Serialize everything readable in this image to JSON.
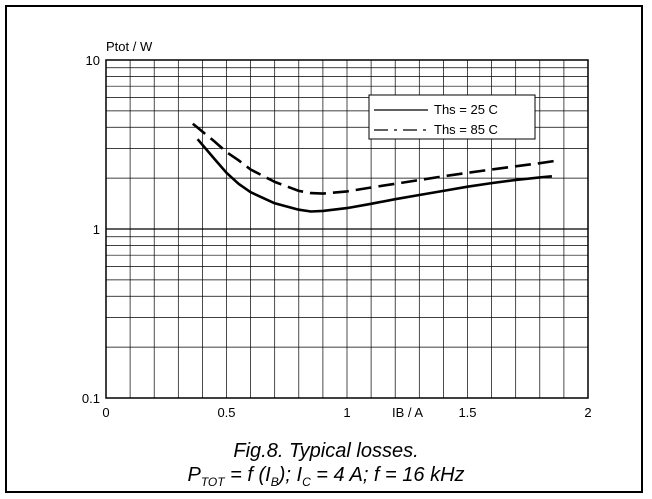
{
  "chart_data": {
    "type": "line",
    "ylabel": "Ptot / W",
    "xlabel": "IB / A",
    "xlim": [
      0,
      2
    ],
    "ylim": [
      0.1,
      10
    ],
    "yscale": "log",
    "grid": true,
    "x_ticks": [
      "0",
      "0.5",
      "1",
      "1.5",
      "2"
    ],
    "y_ticks": [
      "0.1",
      "1",
      "10"
    ],
    "legend": {
      "placement": "top-right"
    },
    "series": [
      {
        "name": "Ths = 25 C",
        "style": "solid",
        "x": [
          0.38,
          0.45,
          0.5,
          0.55,
          0.6,
          0.7,
          0.8,
          0.85,
          0.9,
          1.0,
          1.1,
          1.2,
          1.3,
          1.4,
          1.5,
          1.6,
          1.7,
          1.8,
          1.85
        ],
        "y": [
          3.4,
          2.6,
          2.15,
          1.85,
          1.65,
          1.42,
          1.3,
          1.27,
          1.28,
          1.33,
          1.41,
          1.5,
          1.59,
          1.68,
          1.78,
          1.87,
          1.95,
          2.02,
          2.05
        ]
      },
      {
        "name": "Ths = 85 C",
        "style": "dashed",
        "x": [
          0.36,
          0.45,
          0.5,
          0.55,
          0.6,
          0.7,
          0.8,
          0.85,
          0.9,
          1.0,
          1.1,
          1.2,
          1.3,
          1.4,
          1.5,
          1.6,
          1.7,
          1.8,
          1.88
        ],
        "y": [
          4.2,
          3.3,
          2.85,
          2.55,
          2.25,
          1.9,
          1.68,
          1.63,
          1.62,
          1.67,
          1.76,
          1.85,
          1.95,
          2.05,
          2.15,
          2.25,
          2.35,
          2.45,
          2.55
        ]
      }
    ]
  },
  "caption": {
    "line1": "Fig.8.   Typical losses.",
    "line2": {
      "p": "P",
      "p_sub": "TOT",
      "eq_f": " = f (I",
      "ib_sub": "B",
      "after_ib": "); I",
      "ic_sub": "C",
      "rest": " = 4 A; f = 16 kHz"
    }
  }
}
